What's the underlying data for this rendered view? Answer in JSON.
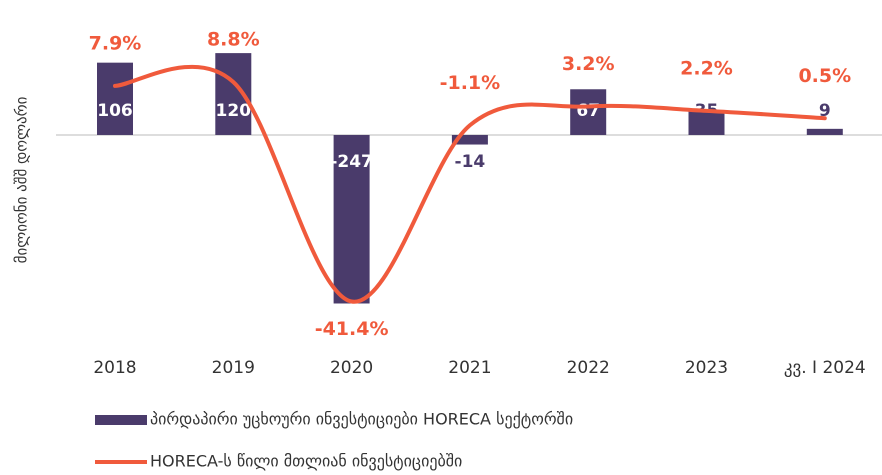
{
  "chart_data": {
    "type": "bar",
    "ylabel": "მილიონი აშშ დოლარი",
    "categories": [
      "2018",
      "2019",
      "2020",
      "2021",
      "2022",
      "2023",
      "კვ. I 2024"
    ],
    "series": [
      {
        "name": "პირდაპირი უცხოური ინვესტიციები HORECA სექტორში",
        "type": "bar",
        "color": "#4a3b6b",
        "values": [
          106,
          120,
          -247,
          -14,
          67,
          35,
          9
        ]
      },
      {
        "name": "HORECA-ს წილი მთლიან ინვესტიციებში",
        "type": "line",
        "axis": "y2",
        "color": "#f05a3c",
        "values": [
          7.9,
          8.8,
          -41.4,
          -1.1,
          3.2,
          2.2,
          0.5
        ],
        "value_labels": [
          "7.9%",
          "8.8%",
          "-41.4%",
          "-1.1%",
          "3.2%",
          "2.2%",
          "0.5%"
        ]
      }
    ],
    "ylim": [
      -280,
      170
    ],
    "y2lim": [
      -47,
      23.2
    ]
  }
}
